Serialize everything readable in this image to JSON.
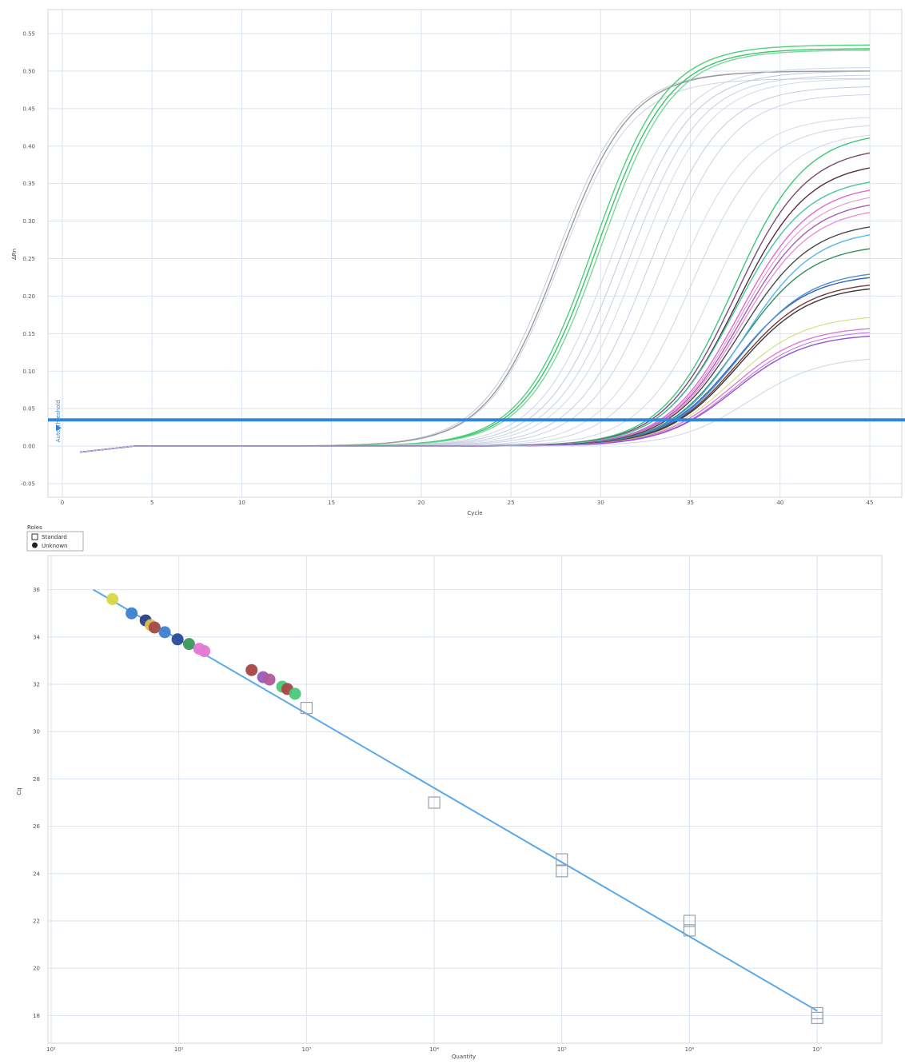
{
  "chart_data": [
    {
      "type": "line",
      "xlabel": "Cycle",
      "ylabel": "ΔRn",
      "xlim": [
        0,
        45
      ],
      "ylim": [
        -0.05,
        0.55
      ],
      "x_ticks": [
        0,
        5,
        10,
        15,
        20,
        25,
        30,
        35,
        40,
        45
      ],
      "y_ticks": [
        -0.05,
        0.0,
        0.05,
        0.1,
        0.15,
        0.2,
        0.25,
        0.3,
        0.35,
        0.4,
        0.45,
        0.5,
        0.55
      ],
      "x_tick_labels": [
        "0",
        "5",
        "10",
        "15",
        "20",
        "25",
        "30",
        "35",
        "40",
        "45"
      ],
      "y_tick_labels": [
        "-0.05",
        "0.00",
        "0.05",
        "0.10",
        "0.15",
        "0.20",
        "0.25",
        "0.30",
        "0.35",
        "0.40",
        "0.45",
        "0.50",
        "0.55"
      ],
      "grid": true,
      "threshold": 0.035,
      "threshold_label": "Auto Threshold",
      "threshold_color": "#2e86de",
      "series": [
        {
          "color": "#b8c2d6",
          "ct": 22.3,
          "plateau": 0.5
        },
        {
          "color": "#c6cde0",
          "ct": 22.6,
          "plateau": 0.49
        },
        {
          "color": "#9a9a9a",
          "ct": 22.5,
          "plateau": 0.5
        },
        {
          "color": "#4fd17a",
          "ct": 24.3,
          "plateau": 0.535
        },
        {
          "color": "#3cc36b",
          "ct": 24.5,
          "plateau": 0.53
        },
        {
          "color": "#7ad89b",
          "ct": 24.7,
          "plateau": 0.528
        },
        {
          "color": "#c9d0e4",
          "ct": 25.4,
          "plateau": 0.505
        },
        {
          "color": "#b9c2da",
          "ct": 25.9,
          "plateau": 0.5
        },
        {
          "color": "#c3cbe0",
          "ct": 26.4,
          "plateau": 0.495
        },
        {
          "color": "#cfd5e6",
          "ct": 26.9,
          "plateau": 0.49
        },
        {
          "color": "#bfc8de",
          "ct": 27.6,
          "plateau": 0.48
        },
        {
          "color": "#c7cee2",
          "ct": 28.3,
          "plateau": 0.47
        },
        {
          "color": "#d0d6e8",
          "ct": 29.3,
          "plateau": 0.44
        },
        {
          "color": "#c9cfe2",
          "ct": 30.2,
          "plateau": 0.43
        },
        {
          "color": "#cdd3e6",
          "ct": 31.5,
          "plateau": 0.42
        },
        {
          "color": "#3dc87a",
          "ct": 32.6,
          "plateau": 0.42
        },
        {
          "color": "#7a4a72",
          "ct": 32.8,
          "plateau": 0.4
        },
        {
          "color": "#5a2e3c",
          "ct": 33.0,
          "plateau": 0.38
        },
        {
          "color": "#45c7a0",
          "ct": 33.0,
          "plateau": 0.36
        },
        {
          "color": "#e26ad0",
          "ct": 33.3,
          "plateau": 0.35
        },
        {
          "color": "#d982c9",
          "ct": 33.4,
          "plateau": 0.34
        },
        {
          "color": "#a35fb0",
          "ct": 33.5,
          "plateau": 0.33
        },
        {
          "color": "#e691d6",
          "ct": 33.6,
          "plateau": 0.32
        },
        {
          "color": "#4a4a4a",
          "ct": 33.7,
          "plateau": 0.3
        },
        {
          "color": "#2f8f5a",
          "ct": 33.9,
          "plateau": 0.27
        },
        {
          "color": "#5bb4ec",
          "ct": 34.0,
          "plateau": 0.29
        },
        {
          "color": "#3a5fb8",
          "ct": 34.1,
          "plateau": 0.23
        },
        {
          "color": "#4a90d9",
          "ct": 34.2,
          "plateau": 0.235
        },
        {
          "color": "#7a3a3a",
          "ct": 34.3,
          "plateau": 0.22
        },
        {
          "color": "#3a3a3a",
          "ct": 34.4,
          "plateau": 0.215
        },
        {
          "color": "#c3d86a",
          "ct": 34.6,
          "plateau": 0.175
        },
        {
          "color": "#e07ad7",
          "ct": 34.8,
          "plateau": 0.16
        },
        {
          "color": "#b65fd0",
          "ct": 35.0,
          "plateau": 0.155
        },
        {
          "color": "#8f55d6",
          "ct": 35.1,
          "plateau": 0.15
        },
        {
          "color": "#c8cee0",
          "ct": 36.5,
          "plateau": 0.12
        }
      ]
    },
    {
      "type": "scatter",
      "xlabel": "Quantity",
      "ylabel": "Cq",
      "xscale": "log",
      "xlim_log10": [
        1,
        7.5
      ],
      "ylim": [
        17,
        37
      ],
      "x_ticks_log10": [
        1,
        2,
        3,
        4,
        5,
        6,
        7
      ],
      "x_tick_labels": [
        "10¹",
        "10²",
        "10³",
        "10⁴",
        "10⁵",
        "10⁶",
        "10⁷"
      ],
      "y_ticks": [
        18,
        20,
        22,
        24,
        26,
        28,
        30,
        32,
        34,
        36
      ],
      "y_tick_labels": [
        "18",
        "20",
        "22",
        "24",
        "26",
        "28",
        "30",
        "32",
        "34",
        "36"
      ],
      "grid": true,
      "legend_title": "Roles",
      "legend": [
        {
          "label": "Standard",
          "marker": "square-open"
        },
        {
          "label": "Unknown",
          "marker": "circle-filled"
        }
      ],
      "legend_placement": "top-left (outside)",
      "fit_line": {
        "color": "#5ba8e8",
        "x_log10": [
          1.33,
          7.0
        ],
        "y": [
          36.0,
          18.2
        ]
      },
      "standards": [
        {
          "x_log10": 3,
          "y": 31.0
        },
        {
          "x_log10": 4,
          "y": 27.0
        },
        {
          "x_log10": 5,
          "y": 24.6
        },
        {
          "x_log10": 5,
          "y": 24.1
        },
        {
          "x_log10": 6,
          "y": 22.0
        },
        {
          "x_log10": 6,
          "y": 21.6
        },
        {
          "x_log10": 7,
          "y": 18.1
        },
        {
          "x_log10": 7,
          "y": 17.9
        }
      ],
      "unknowns": [
        {
          "x_log10": 1.48,
          "y": 35.6,
          "color": "#d7d844"
        },
        {
          "x_log10": 1.63,
          "y": 35.0,
          "color": "#3e7fd1"
        },
        {
          "x_log10": 1.74,
          "y": 34.7,
          "color": "#2a3f88"
        },
        {
          "x_log10": 1.78,
          "y": 34.5,
          "color": "#e2c04a"
        },
        {
          "x_log10": 1.81,
          "y": 34.4,
          "color": "#a24a4a"
        },
        {
          "x_log10": 1.89,
          "y": 34.2,
          "color": "#3e7fd1"
        },
        {
          "x_log10": 1.99,
          "y": 33.9,
          "color": "#2a4a9a"
        },
        {
          "x_log10": 2.08,
          "y": 33.7,
          "color": "#3a9a5a"
        },
        {
          "x_log10": 2.16,
          "y": 33.5,
          "color": "#e478d4"
        },
        {
          "x_log10": 2.2,
          "y": 33.4,
          "color": "#e478d4"
        },
        {
          "x_log10": 2.57,
          "y": 32.6,
          "color": "#a84444"
        },
        {
          "x_log10": 2.66,
          "y": 32.3,
          "color": "#9a5ab8"
        },
        {
          "x_log10": 2.71,
          "y": 32.2,
          "color": "#b05a9a"
        },
        {
          "x_log10": 2.81,
          "y": 31.9,
          "color": "#4ac87a"
        },
        {
          "x_log10": 2.85,
          "y": 31.8,
          "color": "#a84444"
        },
        {
          "x_log10": 2.91,
          "y": 31.6,
          "color": "#4ac87a"
        }
      ]
    }
  ]
}
